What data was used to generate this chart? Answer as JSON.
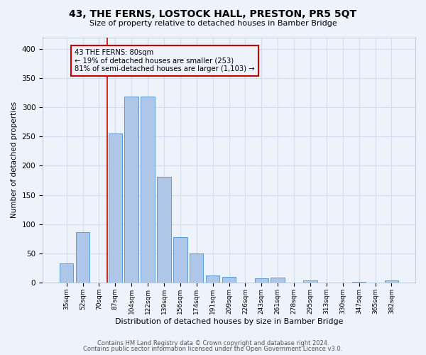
{
  "title": "43, THE FERNS, LOSTOCK HALL, PRESTON, PR5 5QT",
  "subtitle": "Size of property relative to detached houses in Bamber Bridge",
  "xlabel": "Distribution of detached houses by size in Bamber Bridge",
  "ylabel": "Number of detached properties",
  "categories": [
    "35sqm",
    "52sqm",
    "70sqm",
    "87sqm",
    "104sqm",
    "122sqm",
    "139sqm",
    "156sqm",
    "174sqm",
    "191sqm",
    "209sqm",
    "226sqm",
    "243sqm",
    "261sqm",
    "278sqm",
    "295sqm",
    "313sqm",
    "330sqm",
    "347sqm",
    "365sqm",
    "382sqm"
  ],
  "values": [
    33,
    86,
    0,
    255,
    318,
    319,
    181,
    78,
    50,
    12,
    10,
    0,
    7,
    9,
    0,
    3,
    0,
    0,
    1,
    0,
    4
  ],
  "bar_color": "#aec6e8",
  "bar_edge_color": "#5b9bd5",
  "grid_color": "#d0dff0",
  "background_color": "#eef2fb",
  "vline_x_index": 3,
  "vline_color": "#cc0000",
  "annotation_line1": "43 THE FERNS: 80sqm",
  "annotation_line2": "← 19% of detached houses are smaller (253)",
  "annotation_line3": "81% of semi-detached houses are larger (1,103) →",
  "annotation_box_color": "#cc0000",
  "footer1": "Contains HM Land Registry data © Crown copyright and database right 2024.",
  "footer2": "Contains public sector information licensed under the Open Government Licence v3.0.",
  "ylim": [
    0,
    420
  ],
  "yticks": [
    0,
    50,
    100,
    150,
    200,
    250,
    300,
    350,
    400
  ]
}
